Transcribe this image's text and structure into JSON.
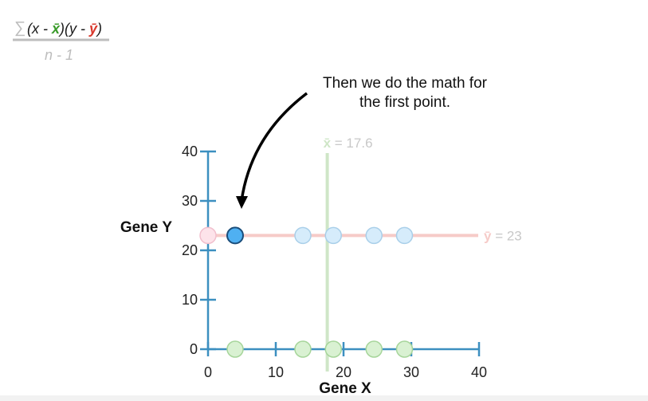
{
  "formula": {
    "sum_symbol": "∑",
    "open_paren_x": "(x - ",
    "xbar": "x̄",
    "mid": ")(y - ",
    "ybar": "ȳ",
    "close_paren": ")",
    "denominator": "n - 1",
    "colors": {
      "text": "#1a1a1a",
      "faded": "#bdbdbd",
      "xbar": "#3a9b2a",
      "ybar": "#d9382c"
    }
  },
  "annotation": {
    "line1": "Then we do the math for",
    "line2": "the first point."
  },
  "chart_data": {
    "type": "scatter",
    "xlabel": "Gene X",
    "ylabel": "Gene Y",
    "xlim": [
      0,
      40
    ],
    "ylim": [
      0,
      40
    ],
    "xticks": [
      0,
      10,
      20,
      30,
      40
    ],
    "yticks": [
      0,
      10,
      20,
      30,
      40
    ],
    "xbar": {
      "label_symbol": "x̄",
      "label_text": "= 17.6",
      "value": 17.6
    },
    "ybar": {
      "label_symbol": "ȳ",
      "label_text": "= 23",
      "value": 23
    },
    "projection_points_y": [
      {
        "x": 0,
        "y": 23
      },
      {
        "x": 14,
        "y": 23
      },
      {
        "x": 18.5,
        "y": 23
      },
      {
        "x": 24.5,
        "y": 23
      },
      {
        "x": 29,
        "y": 23
      }
    ],
    "highlighted_point": {
      "x": 4,
      "y": 23
    },
    "projection_points_x": [
      {
        "x": 4,
        "y": 0
      },
      {
        "x": 14,
        "y": 0
      },
      {
        "x": 18.5,
        "y": 0
      },
      {
        "x": 24.5,
        "y": 0
      },
      {
        "x": 29,
        "y": 0
      }
    ],
    "colors": {
      "axis": "#3c8fc0",
      "tick_label": "#222222",
      "xbar_line": "#cfe6c7",
      "ybar_line": "#f6cbc8",
      "mean_label": "#c8c8c8",
      "point_fill": "#d6ecfb",
      "point_stroke": "#a9cfe9",
      "highlight_fill": "#4fb0f2",
      "highlight_stroke": "#1a4d7a",
      "pink_fill": "#fde3ea",
      "pink_stroke": "#f1bfcd",
      "green_fill": "#d9f1d2",
      "green_stroke": "#a6d59a",
      "arrow": "#000000"
    }
  }
}
